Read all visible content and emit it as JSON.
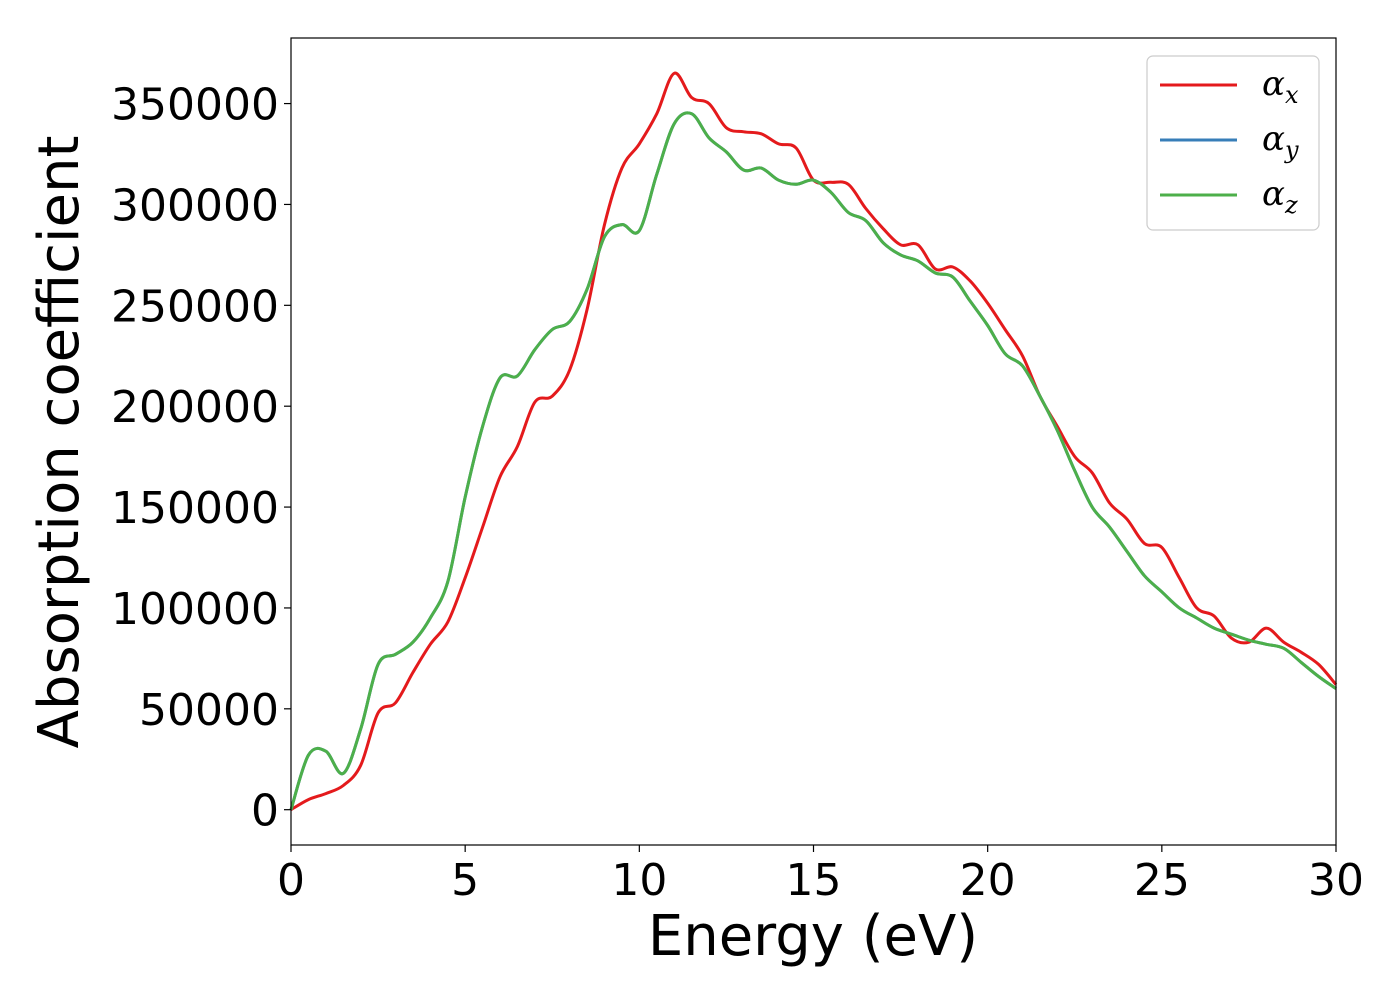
{
  "chart_data": {
    "type": "line",
    "title": "",
    "xlabel": "Energy (eV)",
    "ylabel": "Absorption coefficient",
    "xlim": [
      0,
      30
    ],
    "ylim": [
      -17500,
      382500
    ],
    "xticks": [
      0,
      5,
      10,
      15,
      20,
      25,
      30
    ],
    "xtick_labels": [
      "0",
      "5",
      "10",
      "15",
      "20",
      "25",
      "30"
    ],
    "yticks": [
      0,
      50000,
      100000,
      150000,
      200000,
      250000,
      300000,
      350000
    ],
    "ytick_labels": [
      "0",
      "50000",
      "100000",
      "150000",
      "200000",
      "250000",
      "300000",
      "350000"
    ],
    "grid": false,
    "legend_position": "top-right",
    "x": [
      0,
      0.5,
      1,
      1.5,
      2,
      2.5,
      3,
      3.5,
      4,
      4.5,
      5,
      5.5,
      6,
      6.5,
      7,
      7.5,
      8,
      8.5,
      9,
      9.5,
      10,
      10.5,
      11,
      11.5,
      12,
      12.5,
      13,
      13.5,
      14,
      14.5,
      15,
      15.5,
      16,
      16.5,
      17,
      17.5,
      18,
      18.5,
      19,
      19.5,
      20,
      20.5,
      21,
      21.5,
      22,
      22.5,
      23,
      23.5,
      24,
      24.5,
      25,
      25.5,
      26,
      26.5,
      27,
      27.5,
      28,
      28.5,
      29,
      29.5,
      30
    ],
    "series": [
      {
        "name": "α",
        "sub": "x",
        "color": "#e41a1c",
        "values": [
          0,
          5000,
          8000,
          12000,
          22000,
          48000,
          53000,
          68000,
          82000,
          93000,
          115000,
          140000,
          165000,
          180000,
          202000,
          205000,
          218000,
          248000,
          290000,
          318000,
          330000,
          345000,
          365000,
          353000,
          350000,
          338000,
          336000,
          335000,
          330000,
          328000,
          312000,
          311000,
          310000,
          298000,
          288000,
          280000,
          280000,
          268000,
          269000,
          262000,
          251000,
          238000,
          225000,
          205000,
          190000,
          175000,
          167000,
          152000,
          144000,
          132000,
          130000,
          115000,
          100000,
          96000,
          85000,
          83000,
          90000,
          83000,
          78000,
          72000,
          62000
        ]
      },
      {
        "name": "α",
        "sub": "y",
        "color": "#377eb8",
        "values": [
          0,
          27000,
          29000,
          18000,
          40000,
          72000,
          77000,
          83000,
          95000,
          113000,
          155000,
          190000,
          214000,
          215000,
          228000,
          238000,
          242000,
          258000,
          284000,
          290000,
          287000,
          315000,
          340000,
          345000,
          333000,
          326000,
          317000,
          318000,
          312000,
          310000,
          312000,
          306000,
          296000,
          292000,
          281000,
          275000,
          272000,
          266000,
          264000,
          252000,
          240000,
          226000,
          220000,
          205000,
          188000,
          168000,
          150000,
          140000,
          128000,
          116000,
          108000,
          100000,
          95000,
          90000,
          87000,
          84000,
          82000,
          80000,
          73000,
          66000,
          60000
        ]
      },
      {
        "name": "α",
        "sub": "z",
        "color": "#4daf4a",
        "values": [
          0,
          27000,
          29000,
          18000,
          40000,
          72000,
          77000,
          83000,
          95000,
          113000,
          155000,
          190000,
          214000,
          215000,
          228000,
          238000,
          242000,
          258000,
          284000,
          290000,
          287000,
          315000,
          340000,
          345000,
          333000,
          326000,
          317000,
          318000,
          312000,
          310000,
          312000,
          306000,
          296000,
          292000,
          281000,
          275000,
          272000,
          266000,
          264000,
          252000,
          240000,
          226000,
          220000,
          205000,
          188000,
          168000,
          150000,
          140000,
          128000,
          116000,
          108000,
          100000,
          95000,
          90000,
          87000,
          84000,
          82000,
          80000,
          73000,
          66000,
          60000
        ]
      }
    ]
  }
}
